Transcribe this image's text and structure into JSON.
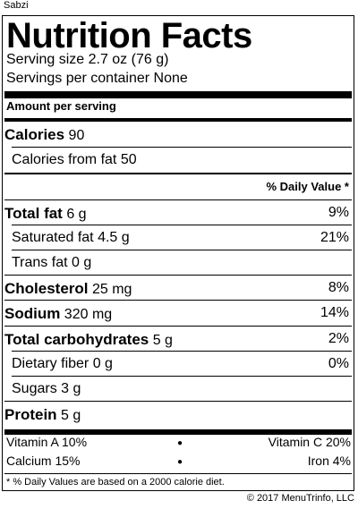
{
  "product_name": "Sabzi",
  "title": "Nutrition Facts",
  "serving_size": "Serving size 2.7 oz (76 g)",
  "servings_per_container": "Servings per container None",
  "amount_per_serving": "Amount per serving",
  "calories": {
    "label": "Calories",
    "value": "90"
  },
  "calories_from_fat": "Calories from fat 50",
  "daily_value_header": "% Daily Value *",
  "nutrients": [
    {
      "label": "Total fat",
      "amount": "6 g",
      "dv": "9%"
    },
    {
      "label": "Saturated fat",
      "amount": "4.5 g",
      "dv": "21%"
    },
    {
      "label": "Trans fat",
      "amount": "0 g",
      "dv": ""
    },
    {
      "label": "Cholesterol",
      "amount": "25 mg",
      "dv": "8%"
    },
    {
      "label": "Sodium",
      "amount": "320 mg",
      "dv": "14%"
    },
    {
      "label": "Total carbohydrates",
      "amount": "5 g",
      "dv": "2%"
    },
    {
      "label": "Dietary fiber",
      "amount": "0 g",
      "dv": "0%"
    },
    {
      "label": "Sugars",
      "amount": "3 g",
      "dv": ""
    },
    {
      "label": "Protein",
      "amount": "5 g",
      "dv": ""
    }
  ],
  "vitamins": {
    "vitamin_a": "Vitamin A 10%",
    "vitamin_c": "Vitamin C 20%",
    "calcium": "Calcium 15%",
    "iron": "Iron 4%"
  },
  "footnote": "* % Daily Values are based on a 2000 calorie diet.",
  "copyright": "© 2017 MenuTrinfo, LLC"
}
